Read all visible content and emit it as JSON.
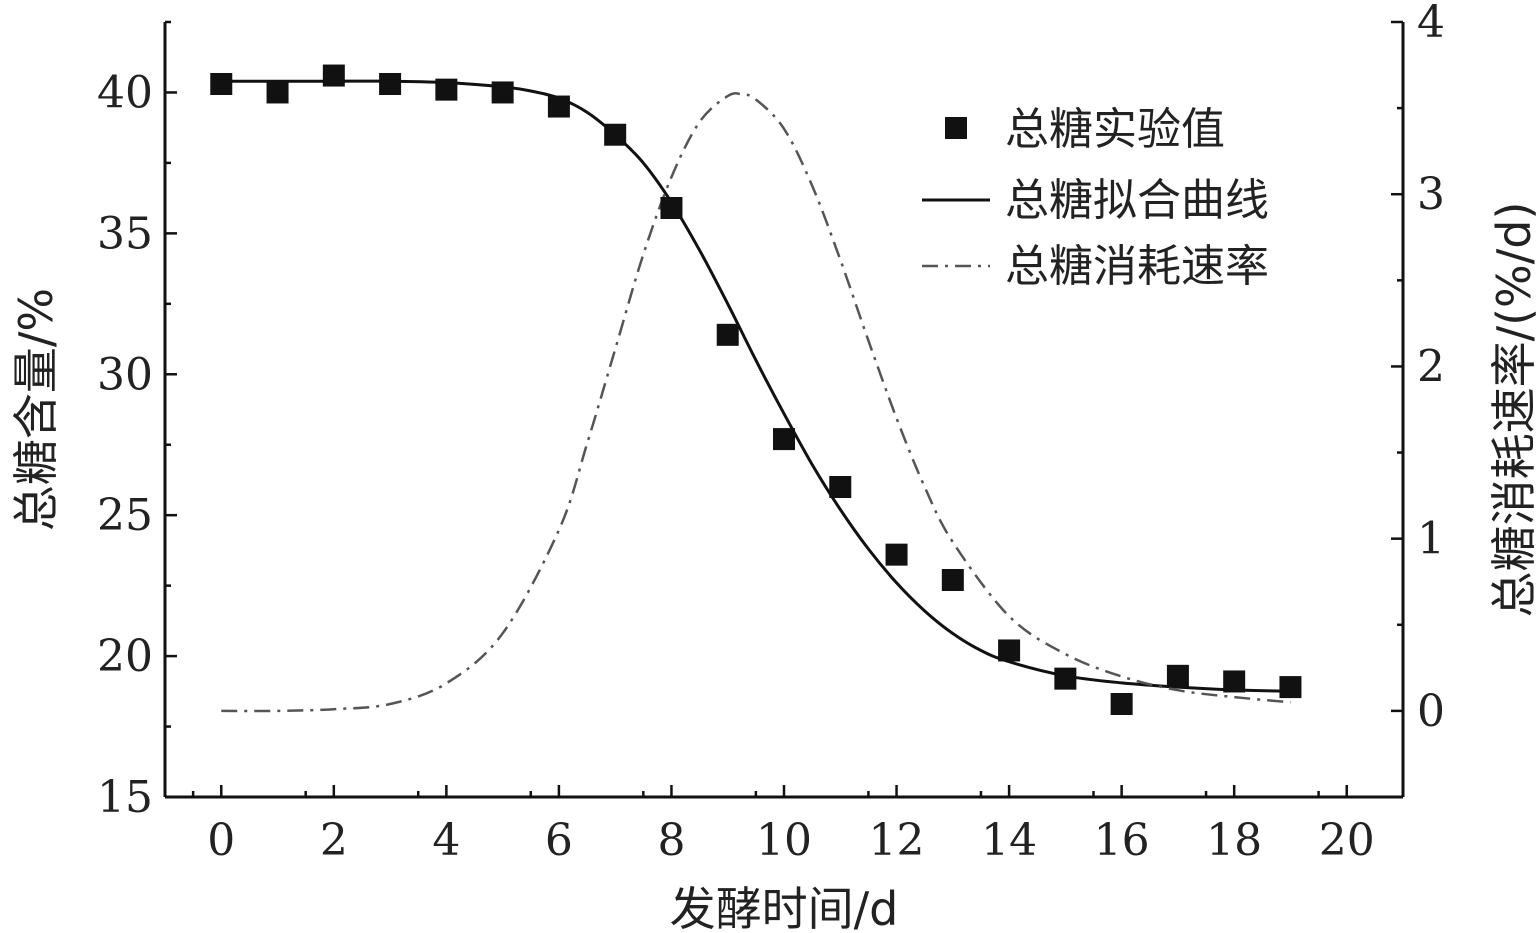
{
  "chart_data": {
    "type": "line",
    "xlabel": "发酵时间/d",
    "ylabel_left": "总糖含量/%",
    "ylabel_right": "总糖消耗速率/(%/d)",
    "xlim": [
      -1,
      21
    ],
    "ylim_left": [
      15,
      42.5
    ],
    "ylim_right": [
      -0.5,
      4
    ],
    "x_ticks": [
      0,
      2,
      4,
      6,
      8,
      10,
      12,
      14,
      16,
      18,
      20
    ],
    "y_left_ticks": [
      15,
      20,
      25,
      30,
      35,
      40
    ],
    "y_right_ticks": [
      0,
      1,
      2,
      3,
      4
    ],
    "grid": false,
    "legend_position": "top-right",
    "series": [
      {
        "name": "总糖实验值",
        "kind": "scatter",
        "axis": "left",
        "color": "#111111",
        "x": [
          0,
          1,
          2,
          3,
          4,
          5,
          6,
          7,
          8,
          9,
          10,
          11,
          12,
          13,
          14,
          15,
          16,
          17,
          18,
          19
        ],
        "y": [
          40.3,
          40.0,
          40.6,
          40.3,
          40.1,
          40.0,
          39.5,
          38.5,
          35.9,
          31.4,
          27.7,
          26.0,
          23.6,
          22.7,
          20.2,
          19.2,
          18.3,
          19.3,
          19.1,
          18.9
        ]
      },
      {
        "name": "总糖拟合曲线",
        "kind": "line",
        "axis": "left",
        "color": "#111111",
        "dash": "solid",
        "x": [
          0,
          1,
          2,
          3,
          4,
          5,
          5.5,
          6,
          6.5,
          7,
          7.5,
          8,
          8.5,
          9,
          9.5,
          10,
          10.5,
          11,
          11.5,
          12,
          12.5,
          13,
          13.5,
          14,
          15,
          16,
          17,
          18,
          19
        ],
        "y": [
          40.4,
          40.4,
          40.4,
          40.4,
          40.35,
          40.2,
          40.05,
          39.8,
          39.3,
          38.5,
          37.5,
          36.1,
          34.4,
          32.5,
          30.5,
          28.6,
          26.8,
          25.2,
          23.8,
          22.6,
          21.6,
          20.8,
          20.2,
          19.8,
          19.3,
          19.05,
          18.9,
          18.8,
          18.75
        ]
      },
      {
        "name": "总糖消耗速率",
        "kind": "line",
        "axis": "right",
        "color": "#555555",
        "dash": "dashdot",
        "x": [
          0,
          1,
          2,
          3,
          4,
          5,
          6,
          6.5,
          7,
          7.5,
          8,
          8.5,
          9,
          9.25,
          9.5,
          10,
          10.5,
          11,
          11.5,
          12,
          12.5,
          13,
          14,
          15,
          16,
          17,
          18,
          19
        ],
        "y": [
          0.0,
          0.0,
          0.01,
          0.04,
          0.16,
          0.45,
          1.05,
          1.55,
          2.1,
          2.65,
          3.1,
          3.42,
          3.57,
          3.58,
          3.55,
          3.38,
          3.05,
          2.62,
          2.15,
          1.7,
          1.3,
          0.98,
          0.55,
          0.33,
          0.2,
          0.12,
          0.08,
          0.05
        ]
      }
    ]
  }
}
